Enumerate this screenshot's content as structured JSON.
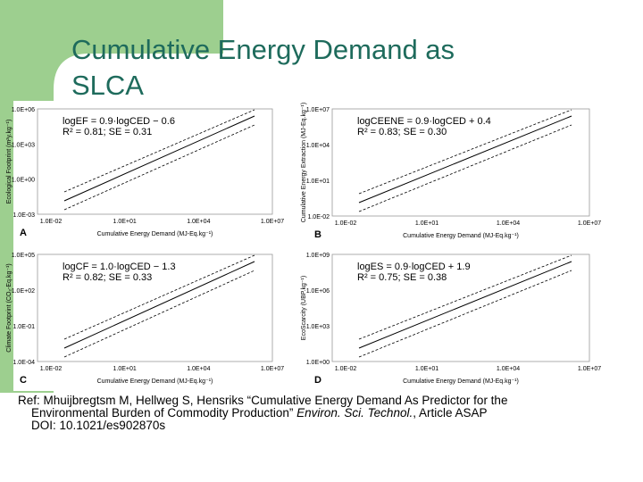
{
  "slide": {
    "title_lines": [
      "Cumulative Energy Demand as",
      "SLCA"
    ],
    "panels": [
      {
        "letter": "A",
        "equation": [
          "logEF = 0.9·logCED − 0.6",
          "R² = 0.81; SE = 0.31"
        ],
        "y_label": "Ecological Footprint (m²y.kg⁻¹)",
        "x_label": "Cumulative Energy Demand (MJ-Eq.kg⁻¹)",
        "yticks": [
          "1.0E+06",
          "1.0E+03",
          "1.0E+00",
          "1.0E-03"
        ],
        "xticks": [
          "1.0E-02",
          "1.0E+01",
          "1.0E+04",
          "1.0E+07"
        ]
      },
      {
        "letter": "B",
        "equation": [
          "logCEENE = 0.9·logCED + 0.4",
          "R² = 0.83; SE = 0.30"
        ],
        "y_label": "Cumulative Energy Extraction (MJ-Eq.kg⁻¹)",
        "x_label": "Cumulative Energy Demand (MJ-Eq.kg⁻¹)",
        "yticks": [
          "1.0E+07",
          "1.0E+04",
          "1.0E+01",
          "1.0E-02"
        ],
        "xticks": [
          "1.0E-02",
          "1.0E+01",
          "1.0E+04",
          "1.0E+07"
        ]
      },
      {
        "letter": "C",
        "equation": [
          "logCF = 1.0·logCED − 1.3",
          "R² = 0.82; SE = 0.33"
        ],
        "y_label": "Climate Footprint (CO₂-Eq.kg⁻¹)",
        "x_label": "Cumulative Energy Demand (MJ-Eq.kg⁻¹)",
        "yticks": [
          "1.0E+05",
          "1.0E+02",
          "1.0E-01",
          "1.0E-04"
        ],
        "xticks": [
          "1.0E-02",
          "1.0E+01",
          "1.0E+04",
          "1.0E+07"
        ]
      },
      {
        "letter": "D",
        "equation": [
          "logES = 0.9·logCED + 1.9",
          "R² = 0.75; SE = 0.38"
        ],
        "y_label": "EcoScarcity (UBP.kg⁻¹)",
        "x_label": "Cumulative Energy Demand (MJ-Eq.kg⁻¹)",
        "yticks": [
          "1.0E+09",
          "1.0E+06",
          "1.0E+03",
          "1.0E+00"
        ],
        "xticks": [
          "1.0E-02",
          "1.0E+01",
          "1.0E+04",
          "1.0E+07"
        ]
      }
    ],
    "reference": {
      "line1": "Ref: Mhuijbregtsm M, Hellweg S, Hensriks “Cumulative Energy Demand As Predictor for the",
      "line2_start": "Environmental Burden of Commodity Production” ",
      "journal": "Environ. Sci. Technol.",
      "line2_end": ", Article ASAP",
      "doi": "DOI: 10.1021/es902870s"
    }
  }
}
